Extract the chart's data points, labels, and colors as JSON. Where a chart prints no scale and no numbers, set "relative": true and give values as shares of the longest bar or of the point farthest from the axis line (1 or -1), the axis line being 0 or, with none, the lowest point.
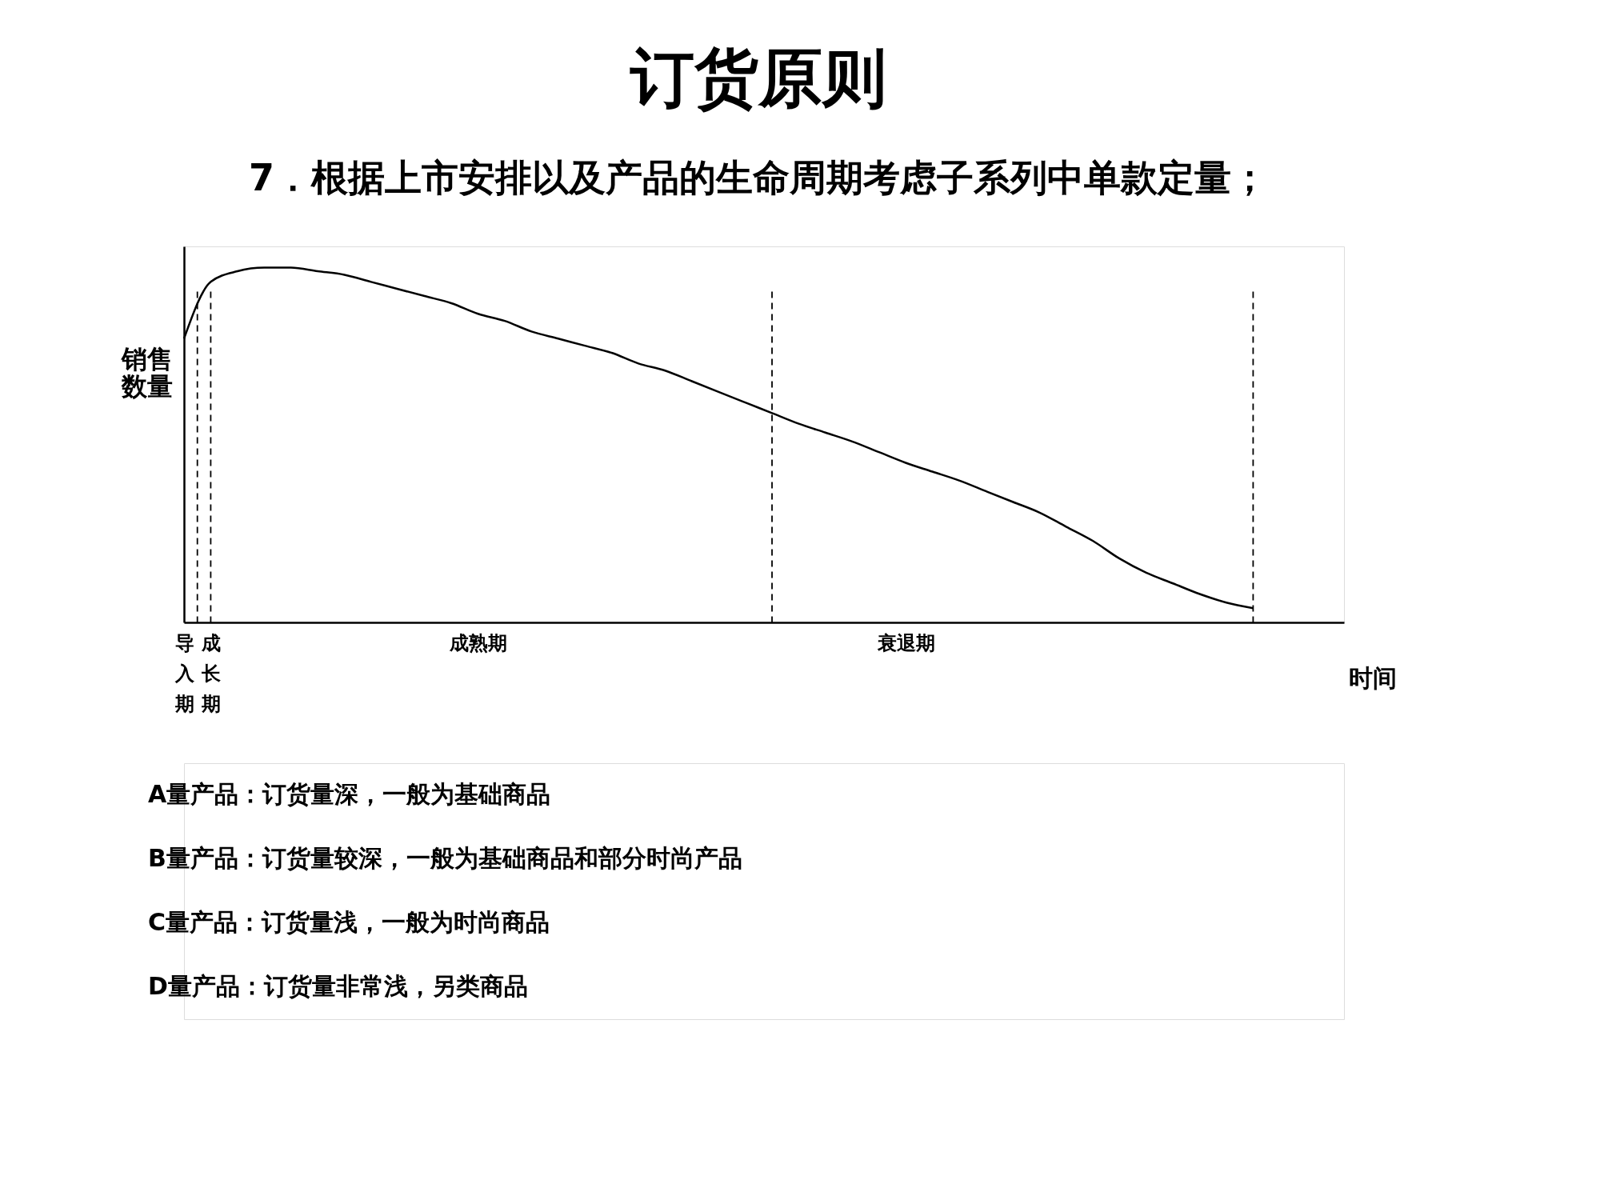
{
  "chart_data": {
    "type": "line",
    "title": "订货原则",
    "subtitle": "7．根据上市安排以及产品的生命周期考虑子系列中单款定量；",
    "ylabel": "销售数量",
    "xlabel": "时间",
    "relative": true,
    "color": "#000000",
    "categories": [
      "导入期",
      "成长期",
      null,
      null,
      null,
      null,
      null,
      null,
      null,
      null,
      null,
      "成熟期",
      null,
      null,
      null,
      null,
      null,
      null,
      null,
      null,
      null,
      null,
      null,
      null,
      null,
      null,
      null,
      "衰退期",
      null,
      null,
      null,
      null,
      null,
      null,
      null,
      null,
      null,
      null,
      null,
      null,
      null
    ],
    "values": [
      0.8,
      0.96,
      0.99,
      1.0,
      1.0,
      0.99,
      0.98,
      0.96,
      0.94,
      0.92,
      0.9,
      0.87,
      0.85,
      0.82,
      0.8,
      0.78,
      0.76,
      0.73,
      0.71,
      0.68,
      0.65,
      0.62,
      0.59,
      0.56,
      0.535,
      0.51,
      0.48,
      0.45,
      0.425,
      0.4,
      0.37,
      0.34,
      0.31,
      0.27,
      0.23,
      0.18,
      0.14,
      0.11,
      0.08,
      0.056,
      0.04
    ],
    "grid": "x",
    "line_style": "solid",
    "annotations": [
      "A量产品：订货量深，一般为基础商品",
      "B量产品：订货量较深，一般为基础商品和部分时尚产品",
      "C量产品：订货量浅，一般为时尚商品",
      "D量产品：订货量非常浅，另类商品"
    ]
  }
}
